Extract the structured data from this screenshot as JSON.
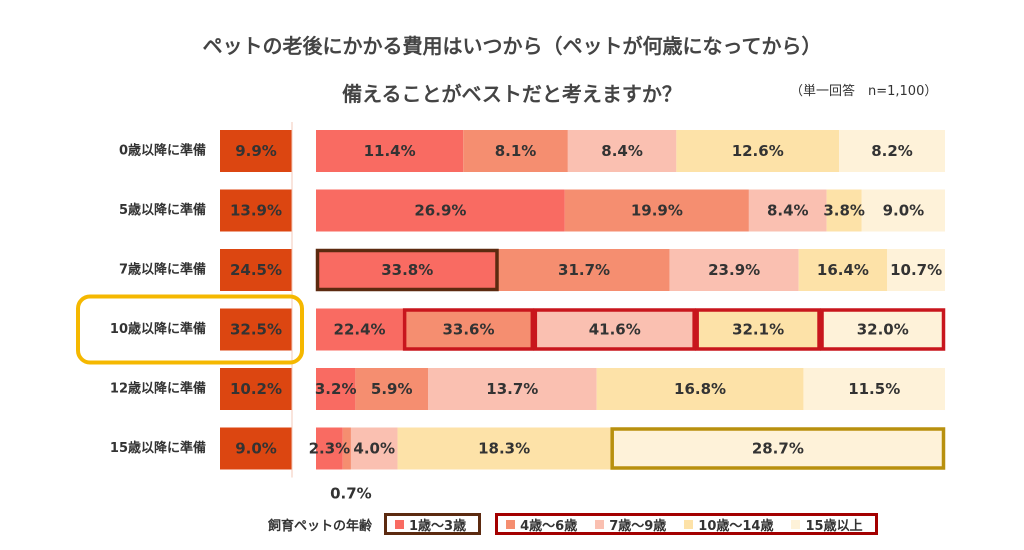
{
  "title_line1": "ペットの老後にかかる費用はいつから（ペットが何歳になってから）",
  "title_line2": "備えることがベストだと考えますか？",
  "note": "（単一回答　n=1,100）",
  "chart_data": {
    "type": "bar",
    "orientation": "horizontal",
    "categories": [
      "0歳以降に準備",
      "5歳以降に準備",
      "7歳以降に準備",
      "10歳以降に準備",
      "12歳以降に準備",
      "15歳以降に準備"
    ],
    "overall": {
      "values": [
        9.9,
        13.9,
        24.5,
        32.5,
        10.2,
        9.0
      ],
      "labels": [
        "9.9%",
        "13.9%",
        "24.5%",
        "32.5%",
        "10.2%",
        "9.0%"
      ],
      "color": "#dc4611"
    },
    "series": [
      {
        "name": "1歳〜3歳",
        "color": "#f96b62",
        "values": [
          11.4,
          26.9,
          33.8,
          22.4,
          3.2,
          2.3
        ],
        "labels": [
          "11.4%",
          "26.9%",
          "33.8%",
          "22.4%",
          "3.2%",
          "2.3%"
        ]
      },
      {
        "name": "4歳〜6歳",
        "color": "#f58e70",
        "values": [
          8.1,
          19.9,
          31.7,
          33.6,
          5.9,
          0.7
        ],
        "labels": [
          "8.1%",
          "19.9%",
          "31.7%",
          "33.6%",
          "5.9%",
          "0.7%"
        ]
      },
      {
        "name": "7歳〜9歳",
        "color": "#fac0b1",
        "values": [
          8.4,
          8.4,
          23.9,
          41.6,
          13.7,
          4.0
        ],
        "labels": [
          "8.4%",
          "8.4%",
          "23.9%",
          "41.6%",
          "13.7%",
          "4.0%"
        ]
      },
      {
        "name": "10歳〜14歳",
        "color": "#fde2a8",
        "values": [
          12.6,
          3.8,
          16.4,
          32.1,
          16.8,
          18.3
        ],
        "labels": [
          "12.6%",
          "3.8%",
          "16.4%",
          "32.1%",
          "16.8%",
          "18.3%"
        ]
      },
      {
        "name": "15歳以上",
        "color": "#fef2d9",
        "values": [
          8.2,
          9.0,
          10.7,
          32.0,
          11.5,
          28.7
        ],
        "labels": [
          "8.2%",
          "9.0%",
          "10.7%",
          "32.0%",
          "11.5%",
          "28.7%"
        ]
      }
    ],
    "highlights": [
      {
        "row": 2,
        "segments": [
          0
        ],
        "color": "#5c2a10"
      },
      {
        "row": 3,
        "segments": [
          1,
          2,
          3,
          4
        ],
        "color": "#c8161d"
      },
      {
        "row": 5,
        "segments": [
          4
        ],
        "color": "#b8900e"
      },
      {
        "row": 3,
        "target": "category-and-overall",
        "color": "#f5b800"
      }
    ],
    "legend_title": "飼育ペットの年齢",
    "legend_placement": "bottom"
  },
  "colors": {
    "text": "#333333",
    "title": "#444444"
  }
}
